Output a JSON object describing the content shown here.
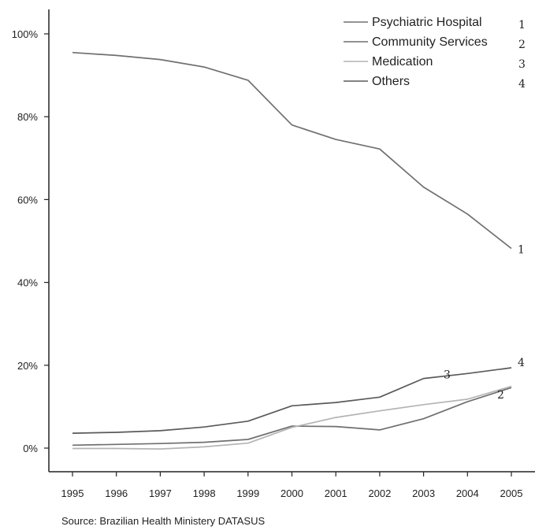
{
  "chart_data": {
    "type": "line",
    "title": "",
    "xlabel": "",
    "ylabel": "",
    "x": [
      "1995",
      "1996",
      "1997",
      "1998",
      "1999",
      "2000",
      "2001",
      "2002",
      "2003",
      "2004",
      "2005"
    ],
    "ylim": [
      -5,
      105
    ],
    "yticks": [
      0,
      20,
      40,
      60,
      80,
      100
    ],
    "ytick_labels": [
      "0%",
      "20%",
      "40%",
      "60%",
      "80%",
      "100%"
    ],
    "grid": false,
    "legend_position": "top-right",
    "series": [
      {
        "name": "Psychiatric Hospital",
        "marker": "1",
        "color": "#707070",
        "values": [
          95.5,
          94.8,
          93.8,
          92.0,
          88.8,
          78.0,
          74.5,
          72.2,
          63.0,
          56.5,
          48.2
        ]
      },
      {
        "name": "Community Services",
        "marker": "2",
        "color": "#6f6f6f",
        "values": [
          0.7,
          0.9,
          1.1,
          1.4,
          2.1,
          5.3,
          5.2,
          4.4,
          7.1,
          11.2,
          14.6
        ]
      },
      {
        "name": "Medication",
        "marker": "3",
        "color": "#b4b4b4",
        "values": [
          -0.1,
          -0.1,
          -0.2,
          0.3,
          1.2,
          5.0,
          7.4,
          9.0,
          10.5,
          11.8,
          14.9
        ]
      },
      {
        "name": "Others",
        "marker": "4",
        "color": "#5a5a5a",
        "values": [
          3.6,
          3.8,
          4.2,
          5.1,
          6.5,
          10.2,
          11.0,
          12.3,
          16.8,
          18.0,
          19.4
        ]
      }
    ],
    "source": "Source: Brazilian Health Ministery DATASUS"
  }
}
